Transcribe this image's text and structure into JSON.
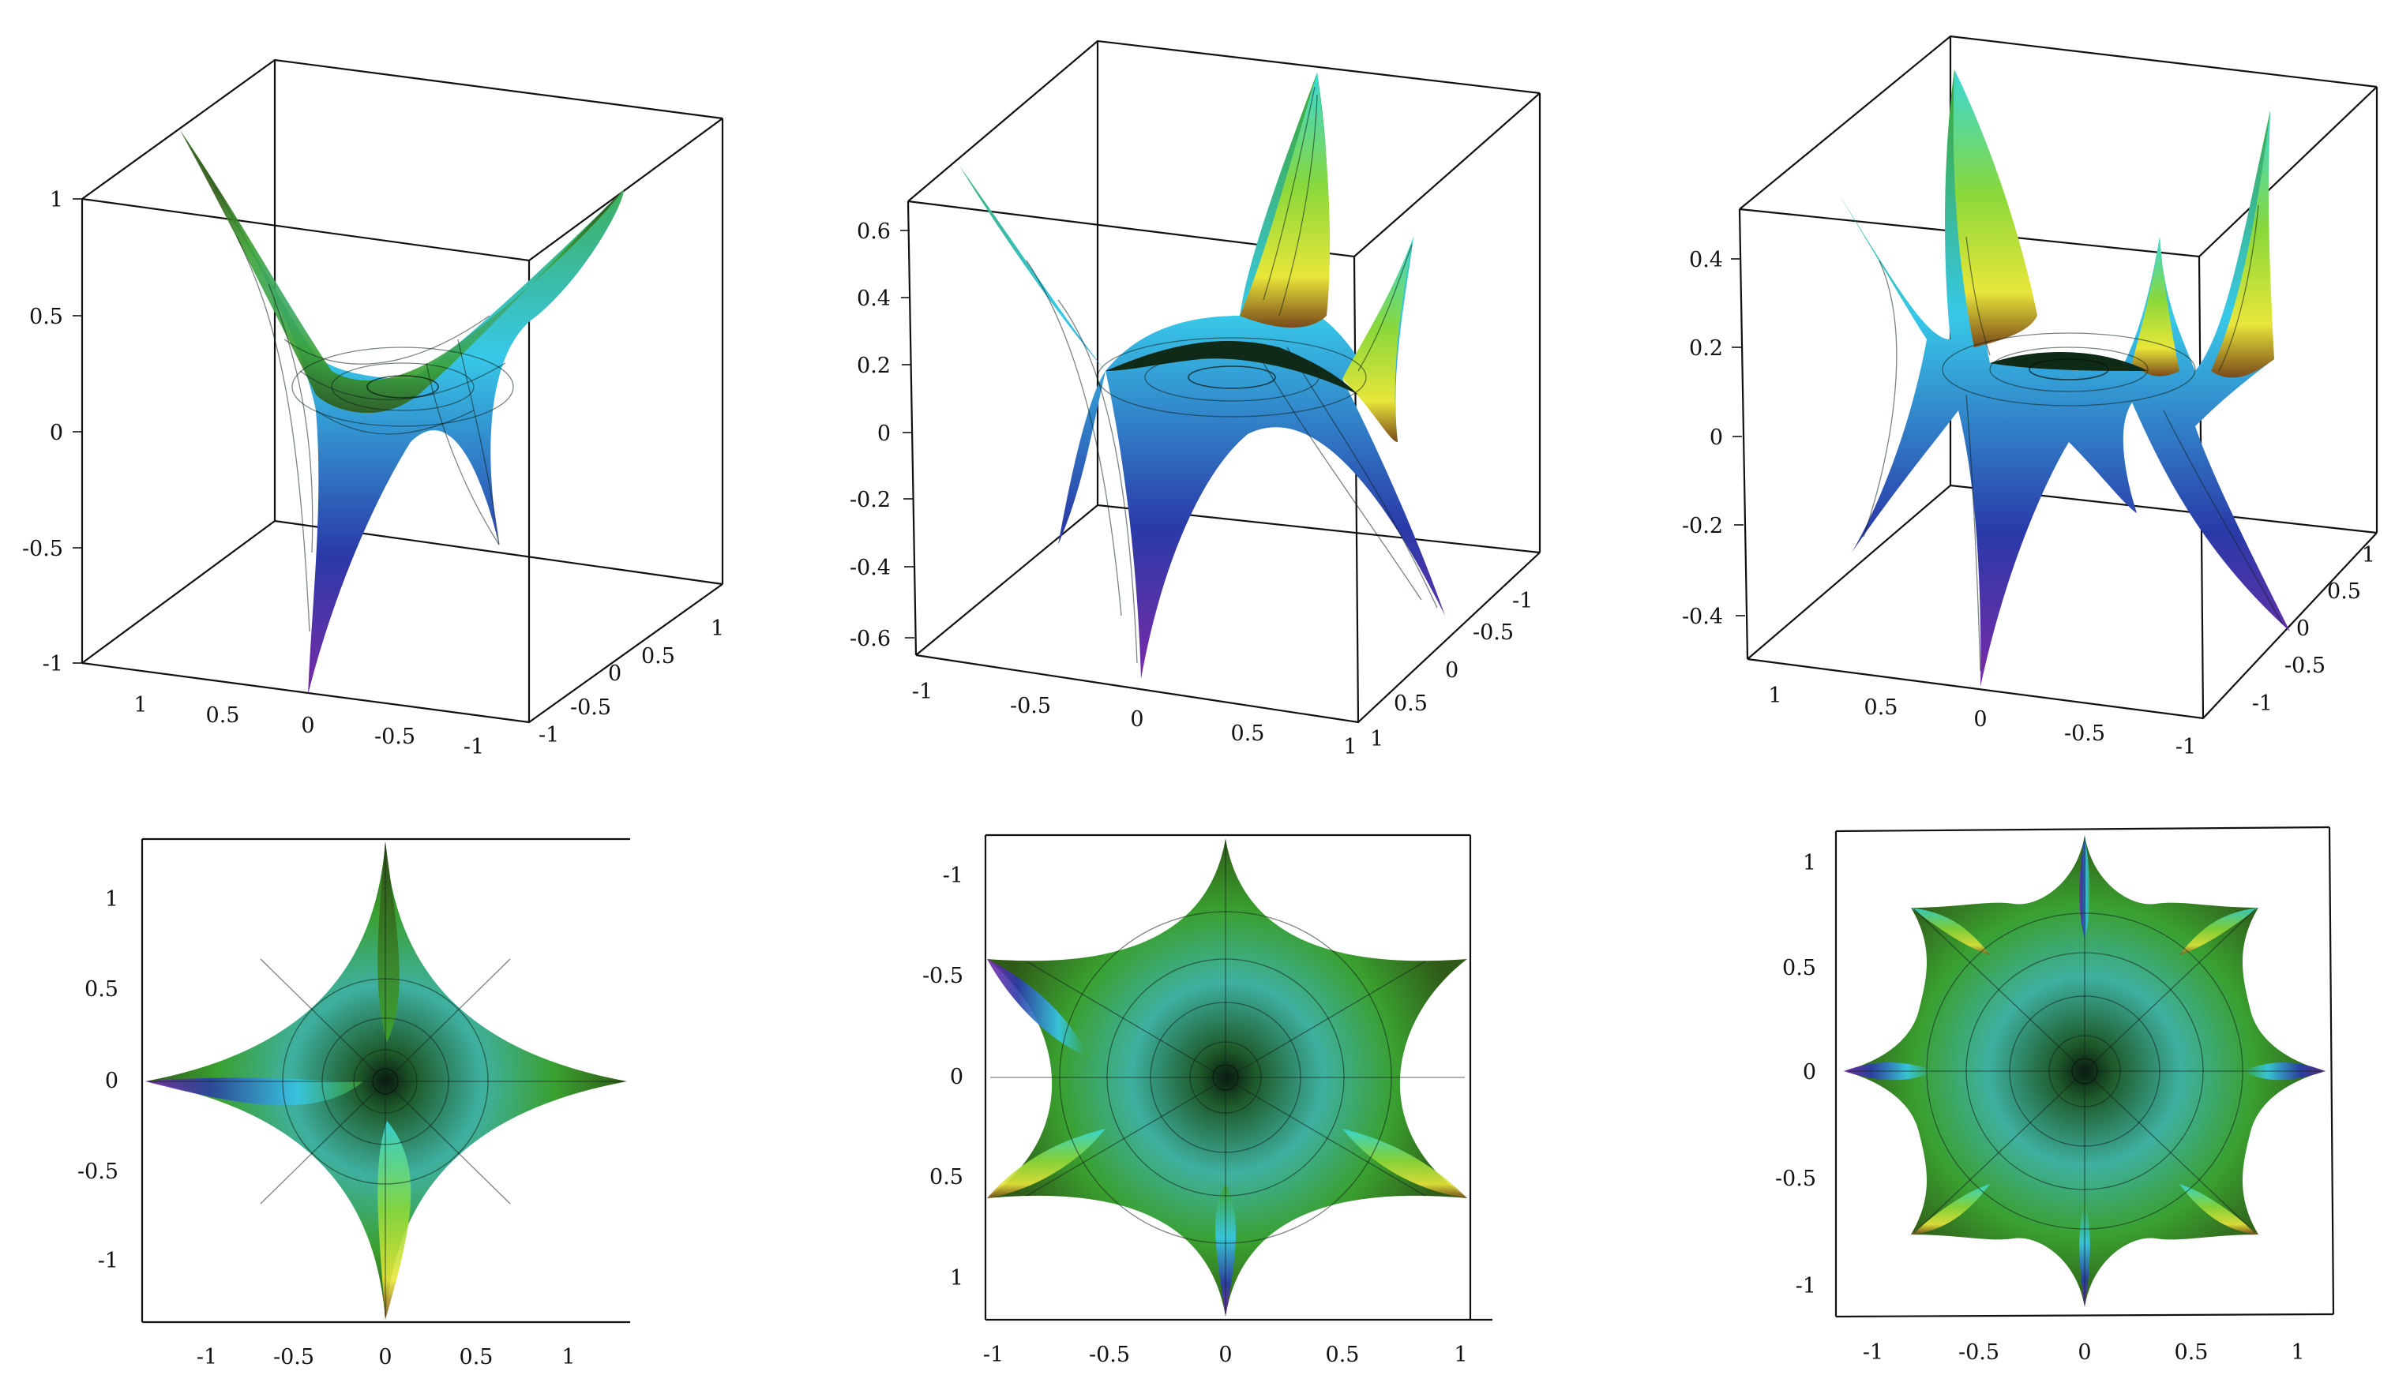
{
  "panels": [
    {
      "id": "surface-3d-order-2",
      "view": "3d",
      "z_ticks": [
        "1",
        "0.5",
        "0",
        "-0.5",
        "-1"
      ],
      "x_ticks": [
        "1",
        "0.5",
        "0",
        "-0.5",
        "-1"
      ],
      "y_ticks": [
        "1",
        "0.5",
        "0",
        "-0.5",
        "-1"
      ]
    },
    {
      "id": "surface-3d-order-3",
      "view": "3d",
      "z_ticks": [
        "0.6",
        "0.4",
        "0.2",
        "0",
        "-0.2",
        "-0.4",
        "-0.6"
      ],
      "x_ticks": [
        "-1",
        "-0.5",
        "0",
        "0.5",
        "1"
      ],
      "y_ticks": [
        "-1",
        "-0.5",
        "0",
        "0.5",
        "1"
      ]
    },
    {
      "id": "surface-3d-order-4",
      "view": "3d",
      "z_ticks": [
        "0.4",
        "0.2",
        "0",
        "-0.2",
        "-0.4"
      ],
      "x_ticks": [
        "1",
        "0.5",
        "0",
        "-0.5",
        "-1"
      ],
      "y_ticks": [
        "1",
        "0.5",
        "0",
        "-0.5",
        "-1"
      ]
    },
    {
      "id": "surface-top-order-2",
      "view": "top",
      "y_ticks": [
        "1",
        "0.5",
        "0",
        "-0.5",
        "-1"
      ],
      "x_ticks": [
        "-1",
        "-0.5",
        "0",
        "0.5",
        "1"
      ]
    },
    {
      "id": "surface-top-order-3",
      "view": "top",
      "y_ticks": [
        "-1",
        "-0.5",
        "0",
        "0.5",
        "1"
      ],
      "x_ticks": [
        "-1",
        "-0.5",
        "0",
        "0.5",
        "1"
      ]
    },
    {
      "id": "surface-top-order-4",
      "view": "top",
      "y_ticks": [
        "1",
        "0.5",
        "0",
        "-0.5",
        "-1"
      ],
      "x_ticks": [
        "-1",
        "-0.5",
        "0",
        "0.5",
        "1"
      ]
    }
  ],
  "colors": {
    "dark_green": "#2f5a17",
    "green": "#3fa52a",
    "cyan": "#38e6ef",
    "yellow": "#e8e63a",
    "blue": "#2a3aa8",
    "purple": "#7a2aa8",
    "brown": "#7a4a1a"
  }
}
